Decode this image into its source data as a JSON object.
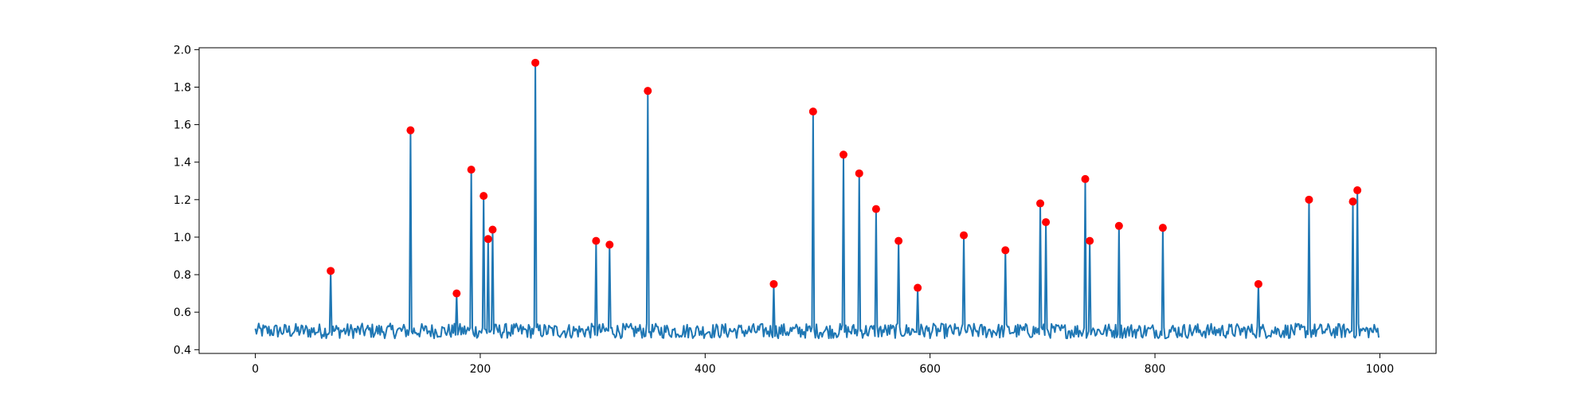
{
  "chart_data": {
    "type": "line",
    "title": "",
    "xlabel": "",
    "ylabel": "",
    "xlim": [
      -50,
      1050
    ],
    "ylim": [
      0.38,
      2.01
    ],
    "x_ticks": [
      0,
      200,
      400,
      600,
      800,
      1000
    ],
    "y_ticks": [
      0.4,
      0.6,
      0.8,
      1.0,
      1.2,
      1.4,
      1.6,
      1.8,
      2.0
    ],
    "x_tick_labels": [
      "0",
      "200",
      "400",
      "600",
      "800",
      "1000"
    ],
    "y_tick_labels": [
      "0.4",
      "0.6",
      "0.8",
      "1.0",
      "1.2",
      "1.4",
      "1.6",
      "1.8",
      "2.0"
    ],
    "grid": false,
    "legend": "none",
    "colors": {
      "line": "#1f77b4",
      "peaks": "#ff0000"
    },
    "series": [
      {
        "kind": "line",
        "n_points": 1000,
        "baseline": 0.5,
        "noise_amplitude": 0.04
      },
      {
        "kind": "scatter",
        "marker": "circle",
        "points": [
          [
            67,
            0.82
          ],
          [
            138,
            1.57
          ],
          [
            179,
            0.7
          ],
          [
            192,
            1.36
          ],
          [
            203,
            1.22
          ],
          [
            207,
            0.99
          ],
          [
            211,
            1.04
          ],
          [
            249,
            1.93
          ],
          [
            303,
            0.98
          ],
          [
            315,
            0.96
          ],
          [
            349,
            1.78
          ],
          [
            461,
            0.75
          ],
          [
            496,
            1.67
          ],
          [
            523,
            1.44
          ],
          [
            537,
            1.34
          ],
          [
            552,
            1.15
          ],
          [
            572,
            0.98
          ],
          [
            589,
            0.73
          ],
          [
            630,
            1.01
          ],
          [
            667,
            0.93
          ],
          [
            698,
            1.18
          ],
          [
            703,
            1.08
          ],
          [
            738,
            1.31
          ],
          [
            742,
            0.98
          ],
          [
            768,
            1.06
          ],
          [
            807,
            1.05
          ],
          [
            892,
            0.75
          ],
          [
            937,
            1.2
          ],
          [
            976,
            1.19
          ],
          [
            980,
            1.25
          ]
        ]
      }
    ]
  }
}
